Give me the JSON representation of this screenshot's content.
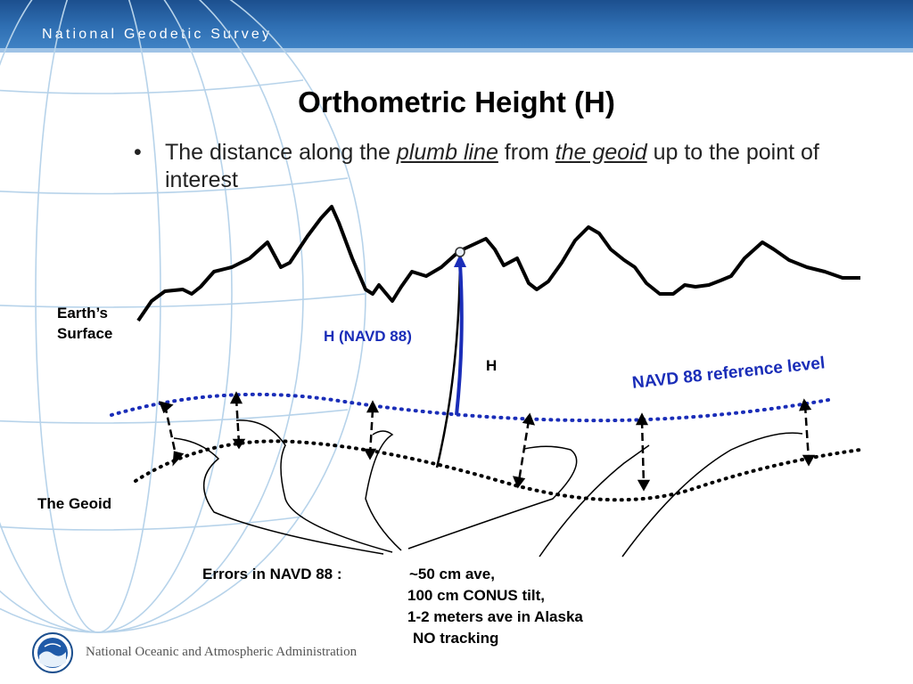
{
  "header": {
    "org_name": "National Geodetic Survey"
  },
  "slide": {
    "title": "Orthometric Height (H)",
    "bullet": {
      "part1": "The distance along the ",
      "term1": "plumb line",
      "part2": " from ",
      "term2": "the geoid",
      "part3": " up to the point of interest"
    }
  },
  "diagram": {
    "earth_surface_label": "Earth’s Surface",
    "geoid_label": "The Geoid",
    "h_navd_label": "H (NAVD 88)",
    "h_label": "H",
    "reference_level_label": "NAVD 88 reference level",
    "errors": {
      "label": "Errors in NAVD 88 :",
      "lines": [
        "~50 cm ave,",
        "100 cm CONUS tilt,",
        "1-2 meters ave in Alaska",
        "NO tracking"
      ]
    },
    "colors": {
      "navd_blue": "#1a2db8",
      "geoid_black": "#000000"
    }
  },
  "footer": {
    "agency": "National Oceanic and Atmospheric Administration",
    "logo_icon": "noaa-logo-icon"
  }
}
